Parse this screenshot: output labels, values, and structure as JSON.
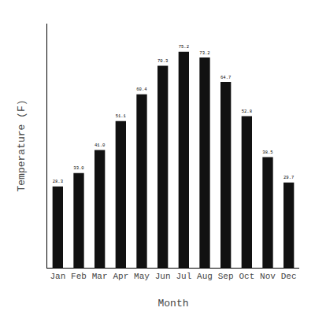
{
  "chart_data": {
    "type": "bar",
    "categories": [
      "Jan",
      "Feb",
      "Mar",
      "Apr",
      "May",
      "Jun",
      "Jul",
      "Aug",
      "Sep",
      "Oct",
      "Nov",
      "Dec"
    ],
    "values": [
      28.3,
      33.0,
      41.0,
      51.1,
      60.4,
      70.3,
      75.2,
      73.2,
      64.7,
      52.8,
      38.5,
      29.7
    ],
    "value_labels": [
      "28.3",
      "33.0",
      "41.0",
      "51.1",
      "60.4",
      "70.3",
      "75.2",
      "73.2",
      "64.7",
      "52.8",
      "38.5",
      "29.7"
    ],
    "color": "#111111",
    "xlabel": "Month",
    "ylabel": "Temperature (F)",
    "ylim": [
      0,
      85
    ],
    "yticks": [],
    "tick_labels": "x",
    "data_labels": true,
    "grid": false
  }
}
